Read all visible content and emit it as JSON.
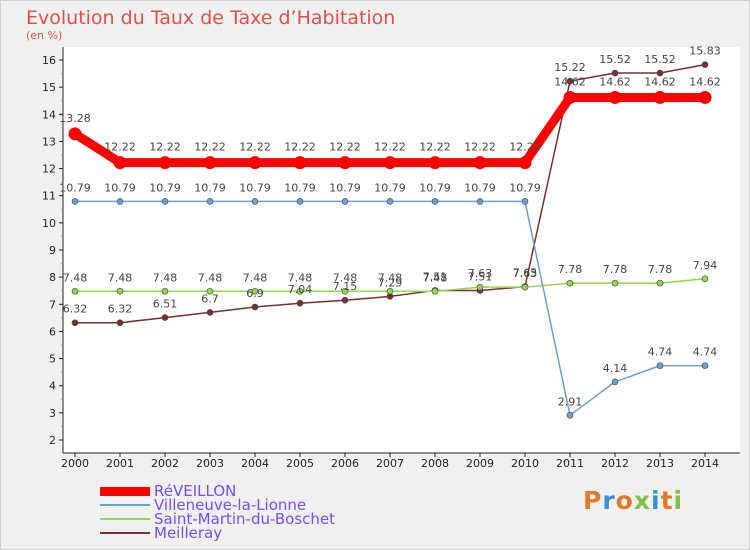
{
  "chart_data": {
    "type": "line",
    "title": "Evolution du Taux de Taxe d’Habitation",
    "ylabel": "(en %)",
    "xlabel": "",
    "x": [
      "2000",
      "2001",
      "2002",
      "2003",
      "2004",
      "2005",
      "2006",
      "2007",
      "2008",
      "2009",
      "2010",
      "2011",
      "2012",
      "2013",
      "2014"
    ],
    "ylim": [
      2,
      16
    ],
    "yticks": [
      2,
      3,
      4,
      5,
      6,
      7,
      8,
      9,
      10,
      11,
      12,
      13,
      14,
      15,
      16
    ],
    "grid": false,
    "legend": "bottom-left",
    "series": [
      {
        "name": "RéVEILLON",
        "color": "#ff0000",
        "values": [
          13.28,
          12.22,
          12.22,
          12.22,
          12.22,
          12.22,
          12.22,
          12.22,
          12.22,
          12.22,
          12.22,
          14.62,
          14.62,
          14.62,
          14.62
        ],
        "labels": [
          "13.28",
          "12.22",
          "12.22",
          "12.22",
          "12.22",
          "12.22",
          "12.22",
          "12.22",
          "12.22",
          "12.22",
          "12.22",
          "14.62",
          "14.62",
          "14.62",
          "14.62"
        ]
      },
      {
        "name": "Villeneuve-la-Lionne",
        "color": "#6a9fd4",
        "values": [
          10.79,
          10.79,
          10.79,
          10.79,
          10.79,
          10.79,
          10.79,
          10.79,
          10.79,
          10.79,
          10.79,
          2.91,
          4.14,
          4.74,
          4.74
        ],
        "labels": [
          "10.79",
          "10.79",
          "10.79",
          "10.79",
          "10.79",
          "10.79",
          "10.79",
          "10.79",
          "10.79",
          "10.79",
          "10.79",
          "2.91",
          "4.14",
          "4.74",
          "4.74"
        ]
      },
      {
        "name": "Saint-Martin-du-Boschet",
        "color": "#8fd94a",
        "values": [
          7.48,
          7.48,
          7.48,
          7.48,
          7.48,
          7.48,
          7.48,
          7.48,
          7.48,
          7.63,
          7.63,
          7.78,
          7.78,
          7.78,
          7.94
        ],
        "labels": [
          "7.48",
          "7.48",
          "7.48",
          "7.48",
          "7.48",
          "7.48",
          "7.48",
          "7.48",
          "7.48",
          "7.63",
          "7.63",
          "7.78",
          "7.78",
          "7.78",
          "7.94"
        ]
      },
      {
        "name": "Meilleray",
        "color": "#7a2f2f",
        "values": [
          6.32,
          6.32,
          6.51,
          6.7,
          6.9,
          7.04,
          7.15,
          7.29,
          7.51,
          7.51,
          7.65,
          15.22,
          15.52,
          15.52,
          15.83
        ],
        "labels": [
          "6.32",
          "6.32",
          "6.51",
          "6.7",
          "6.9",
          "7.04",
          "7.15",
          "7.29",
          "7.51",
          "7.51",
          "7.65",
          "15.22",
          "15.52",
          "15.52",
          "15.83"
        ]
      }
    ]
  },
  "logo": {
    "text": "Proxiti",
    "colors": [
      "#e07a2a",
      "#3a8fd4",
      "#e07a2a",
      "#7dc242",
      "#3a8fd4",
      "#e07a2a",
      "#7dc242"
    ]
  }
}
